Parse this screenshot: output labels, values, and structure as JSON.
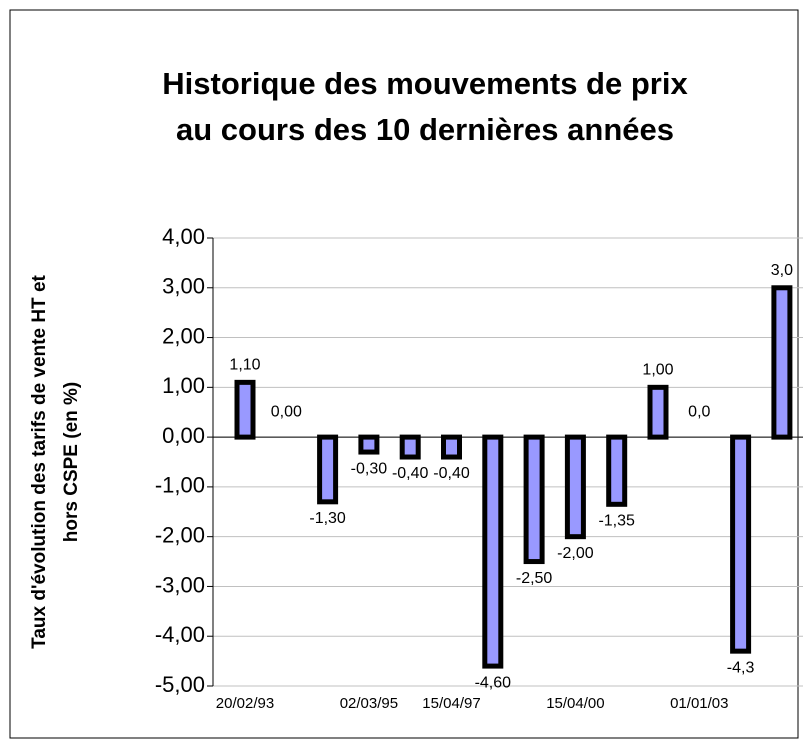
{
  "chart_data": {
    "type": "bar",
    "title": [
      "Historique des mouvements de prix",
      "au cours des 10 dernières années"
    ],
    "y_label": [
      "Taux d'évolution des tarifs de vente HT et",
      "hors CSPE (en %)"
    ],
    "categories": [
      "20/02/93",
      null,
      null,
      "02/03/95",
      null,
      "15/04/97",
      null,
      null,
      "15/04/00",
      null,
      null,
      "01/01/03",
      null,
      null
    ],
    "values": [
      1.1,
      0.0,
      -1.3,
      -0.3,
      -0.4,
      -0.4,
      -4.6,
      -2.5,
      -2.0,
      -1.35,
      1.0,
      0.0,
      -4.3,
      3.0
    ],
    "value_labels": [
      "1,10",
      "0,00",
      "-1,30",
      "-0,30",
      "-0,40",
      "-0,40",
      "-4,60",
      "-2,50",
      "-2,00",
      "-1,35",
      "1,00",
      "0,0",
      "-4,3",
      "3,0"
    ],
    "color": "#9999ff",
    "ylim": [
      -5,
      4
    ],
    "yticks": [
      {
        "value": -5,
        "label": "-5,00"
      },
      {
        "value": -4,
        "label": "-4,00"
      },
      {
        "value": -3,
        "label": "-3,00"
      },
      {
        "value": -2,
        "label": "-2,00"
      },
      {
        "value": -1,
        "label": "-1,00"
      },
      {
        "value": 0,
        "label": "0,00"
      },
      {
        "value": 1,
        "label": "1,00"
      },
      {
        "value": 2,
        "label": "2,00"
      },
      {
        "value": 3,
        "label": "3,00"
      },
      {
        "value": 4,
        "label": "4,00"
      }
    ],
    "grid": true
  }
}
